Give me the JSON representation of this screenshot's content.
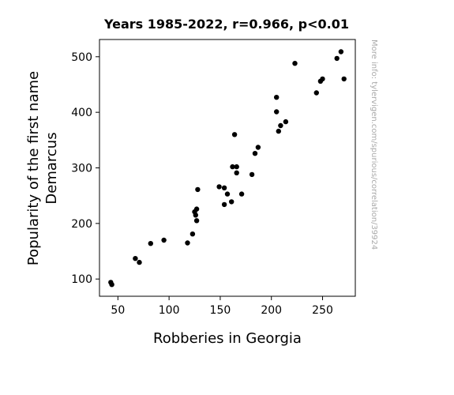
{
  "chart_data": {
    "type": "scatter",
    "title": "Years 1985-2022, r=0.966, p<0.01",
    "xlabel": "Robberies in Georgia",
    "ylabel_line1": "Popularity of the first name",
    "ylabel_line2": "Demarcus",
    "watermark": "More info: tylervigen.com/spurious/correlation/39924",
    "xlim": [
      32,
      282
    ],
    "ylim": [
      69,
      531
    ],
    "xticks": [
      50,
      100,
      150,
      200,
      250
    ],
    "yticks": [
      100,
      200,
      300,
      400,
      500
    ],
    "grid": false,
    "marker_color": "#000000",
    "points": [
      {
        "x": 43,
        "y": 94
      },
      {
        "x": 44,
        "y": 90
      },
      {
        "x": 67,
        "y": 137
      },
      {
        "x": 71,
        "y": 130
      },
      {
        "x": 82,
        "y": 164
      },
      {
        "x": 95,
        "y": 170
      },
      {
        "x": 118,
        "y": 165
      },
      {
        "x": 123,
        "y": 181
      },
      {
        "x": 125,
        "y": 221
      },
      {
        "x": 126,
        "y": 215
      },
      {
        "x": 127,
        "y": 226
      },
      {
        "x": 127,
        "y": 205
      },
      {
        "x": 128,
        "y": 261
      },
      {
        "x": 149,
        "y": 266
      },
      {
        "x": 154,
        "y": 234
      },
      {
        "x": 154,
        "y": 264
      },
      {
        "x": 157,
        "y": 253
      },
      {
        "x": 161,
        "y": 239
      },
      {
        "x": 162,
        "y": 302
      },
      {
        "x": 164,
        "y": 360
      },
      {
        "x": 166,
        "y": 291
      },
      {
        "x": 166,
        "y": 302
      },
      {
        "x": 171,
        "y": 253
      },
      {
        "x": 181,
        "y": 288
      },
      {
        "x": 184,
        "y": 326
      },
      {
        "x": 187,
        "y": 337
      },
      {
        "x": 205,
        "y": 427
      },
      {
        "x": 205,
        "y": 401
      },
      {
        "x": 207,
        "y": 366
      },
      {
        "x": 209,
        "y": 376
      },
      {
        "x": 214,
        "y": 383
      },
      {
        "x": 223,
        "y": 488
      },
      {
        "x": 244,
        "y": 435
      },
      {
        "x": 248,
        "y": 456
      },
      {
        "x": 250,
        "y": 460
      },
      {
        "x": 264,
        "y": 497
      },
      {
        "x": 268,
        "y": 509
      },
      {
        "x": 271,
        "y": 460
      }
    ]
  }
}
